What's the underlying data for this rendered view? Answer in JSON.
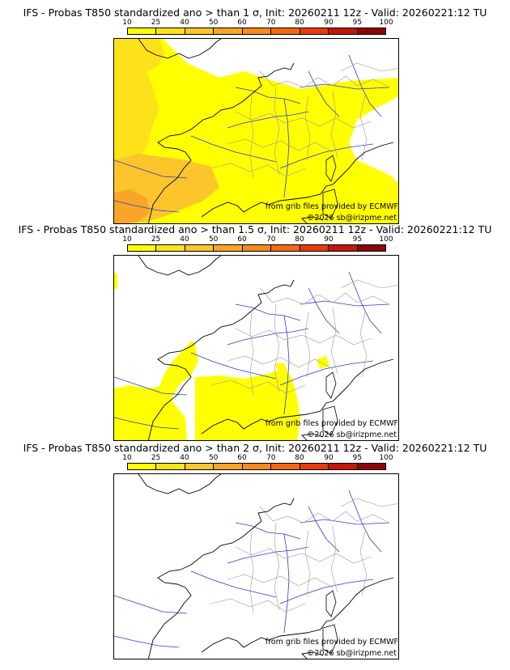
{
  "colorbar": {
    "ticks": [
      "10",
      "25",
      "40",
      "50",
      "60",
      "70",
      "80",
      "90",
      "95",
      "100"
    ],
    "colors": [
      "#ffff00",
      "#fde21a",
      "#fbc52b",
      "#f9a526",
      "#f58a1e",
      "#f06a12",
      "#e83a0c",
      "#c21808",
      "#8c0606"
    ]
  },
  "panels": [
    {
      "title": "IFS - Probas T850  standardized ano > than 1 σ, Init: 20260211 12z - Valid: 20260221:12 TU",
      "credit_source": "from grib files provided by ECMWF",
      "credit_copyright": "©2026 sb@irizpme.net",
      "coverage": "high"
    },
    {
      "title": "IFS - Probas T850  standardized ano > than 1.5 σ, Init: 20260211 12z - Valid: 20260221:12 TU",
      "credit_source": "from grib files provided by ECMWF",
      "credit_copyright": "©2026 sb@irizpme.net",
      "coverage": "medium"
    },
    {
      "title": "IFS - Probas T850  standardized ano > than 2 σ, Init: 20260211 12z - Valid: 20260221:12 TU",
      "credit_source": "from grib files provided by ECMWF",
      "credit_copyright": "©2026 sb@irizpme.net",
      "coverage": "none"
    }
  ]
}
